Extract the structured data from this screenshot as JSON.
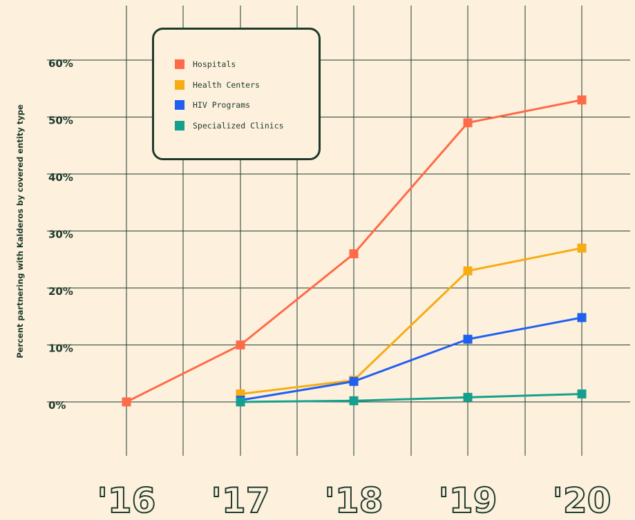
{
  "chart_data": {
    "type": "line",
    "ylabel": "Percent partnering with Kalderos by covered entity type",
    "x": [
      "'16",
      "'17",
      "'18",
      "'19",
      "'20"
    ],
    "y_ticks": [
      "0%",
      "10%",
      "20%",
      "30%",
      "40%",
      "50%",
      "60%"
    ],
    "ylim": [
      0,
      60
    ],
    "grid": true,
    "legend_position": "top-left",
    "series": [
      {
        "name": "Hospitals",
        "color": "#ff6a48",
        "values": [
          0,
          10,
          26,
          49,
          53
        ]
      },
      {
        "name": "Health Centers",
        "color": "#f7ac12",
        "values": [
          null,
          1.4,
          3.8,
          23,
          27
        ]
      },
      {
        "name": "HIV Programs",
        "color": "#2060f0",
        "values": [
          null,
          0.3,
          3.6,
          11,
          14.8
        ]
      },
      {
        "name": "Specialized Clinics",
        "color": "#14a08c",
        "values": [
          null,
          0,
          0.2,
          0.8,
          1.4
        ]
      }
    ]
  },
  "colors": {
    "grid": "#1c3a2c",
    "background": "#fdf0dd"
  }
}
